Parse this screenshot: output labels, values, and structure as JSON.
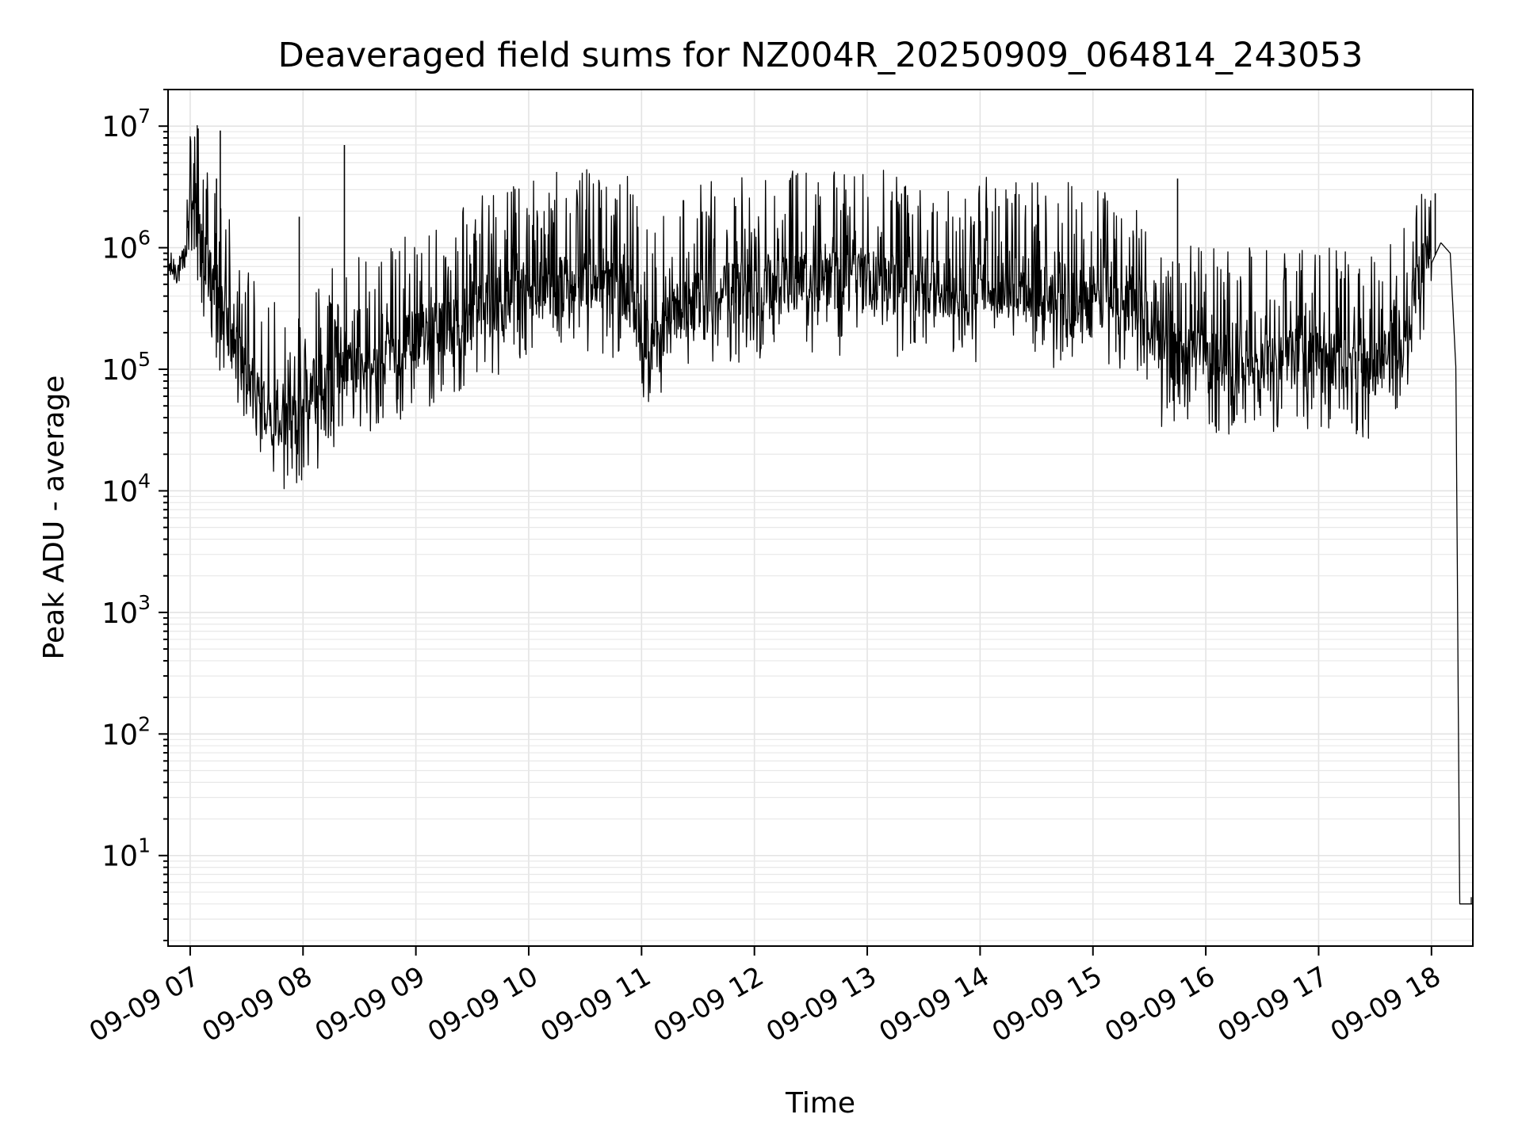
{
  "chart_data": {
    "type": "line",
    "title": "Deaveraged field sums for NZ004R_20250909_064814_243053",
    "xlabel": "Time",
    "ylabel": "Peak ADU - average",
    "yscale": "log",
    "ylim": [
      1.8,
      20000000
    ],
    "xlim": [
      "2025-09-09T06:48:14",
      "2025-09-09T18:22:00"
    ],
    "grid": "on (major and minor)",
    "line_color": "#000000",
    "x_tick_labels": [
      "09-09 07",
      "09-09 08",
      "09-09 09",
      "09-09 10",
      "09-09 11",
      "09-09 12",
      "09-09 13",
      "09-09 14",
      "09-09 15",
      "09-09 16",
      "09-09 17",
      "09-09 18"
    ],
    "x_tick_times": [
      "2025-09-09T07:00",
      "2025-09-09T08:00",
      "2025-09-09T09:00",
      "2025-09-09T10:00",
      "2025-09-09T11:00",
      "2025-09-09T12:00",
      "2025-09-09T13:00",
      "2025-09-09T14:00",
      "2025-09-09T15:00",
      "2025-09-09T16:00",
      "2025-09-09T17:00",
      "2025-09-09T18:00"
    ],
    "y_tick_labels": [
      {
        "value": 10,
        "base": "10",
        "exp": "1"
      },
      {
        "value": 100,
        "base": "10",
        "exp": "2"
      },
      {
        "value": 1000,
        "base": "10",
        "exp": "3"
      },
      {
        "value": 10000,
        "base": "10",
        "exp": "4"
      },
      {
        "value": 100000,
        "base": "10",
        "exp": "5"
      },
      {
        "value": 1000000,
        "base": "10",
        "exp": "6"
      },
      {
        "value": 10000000,
        "base": "10",
        "exp": "7"
      }
    ],
    "series": [
      {
        "x": [
          "2025-09-09T06:48",
          "2025-09-09T06:55",
          "2025-09-09T07:00",
          "2025-09-09T07:05",
          "2025-09-09T07:10",
          "2025-09-09T07:20",
          "2025-09-09T07:30",
          "2025-09-09T07:40",
          "2025-09-09T07:50",
          "2025-09-09T08:00",
          "2025-09-09T08:15",
          "2025-09-09T08:30",
          "2025-09-09T08:45",
          "2025-09-09T09:00",
          "2025-09-09T09:30",
          "2025-09-09T10:00",
          "2025-09-09T10:30",
          "2025-09-09T10:55",
          "2025-09-09T11:00",
          "2025-09-09T11:30",
          "2025-09-09T12:00",
          "2025-09-09T12:30",
          "2025-09-09T13:00",
          "2025-09-09T13:30",
          "2025-09-09T14:00",
          "2025-09-09T14:30",
          "2025-09-09T15:00",
          "2025-09-09T15:25",
          "2025-09-09T15:30",
          "2025-09-09T16:00",
          "2025-09-09T16:30",
          "2025-09-09T17:00",
          "2025-09-09T17:30",
          "2025-09-09T17:45",
          "2025-09-09T17:55",
          "2025-09-09T18:05",
          "2025-09-09T18:10",
          "2025-09-09T18:13",
          "2025-09-09T18:15",
          "2025-09-09T18:22"
        ],
        "y": [
          700000,
          650000,
          1300000,
          900000,
          450000,
          180000,
          60000,
          35000,
          30000,
          35000,
          60000,
          80000,
          110000,
          140000,
          220000,
          350000,
          400000,
          350000,
          120000,
          300000,
          380000,
          420000,
          400000,
          380000,
          350000,
          330000,
          300000,
          250000,
          110000,
          90000,
          95000,
          90000,
          85000,
          140000,
          500000,
          1100000,
          900000,
          100000,
          4,
          4
        ]
      }
    ],
    "spikes": [
      {
        "x": "2025-09-09T07:14",
        "y": 3700000
      },
      {
        "x": "2025-09-09T07:16",
        "y": 9200000
      },
      {
        "x": "2025-09-09T07:58",
        "y": 1800000
      },
      {
        "x": "2025-09-09T08:22",
        "y": 7000000
      },
      {
        "x": "2025-09-09T11:50",
        "y": 2200000
      },
      {
        "x": "2025-09-09T14:10",
        "y": 2200000
      },
      {
        "x": "2025-09-09T15:45",
        "y": 3700000
      },
      {
        "x": "2025-09-09T18:02",
        "y": 2800000
      }
    ]
  }
}
